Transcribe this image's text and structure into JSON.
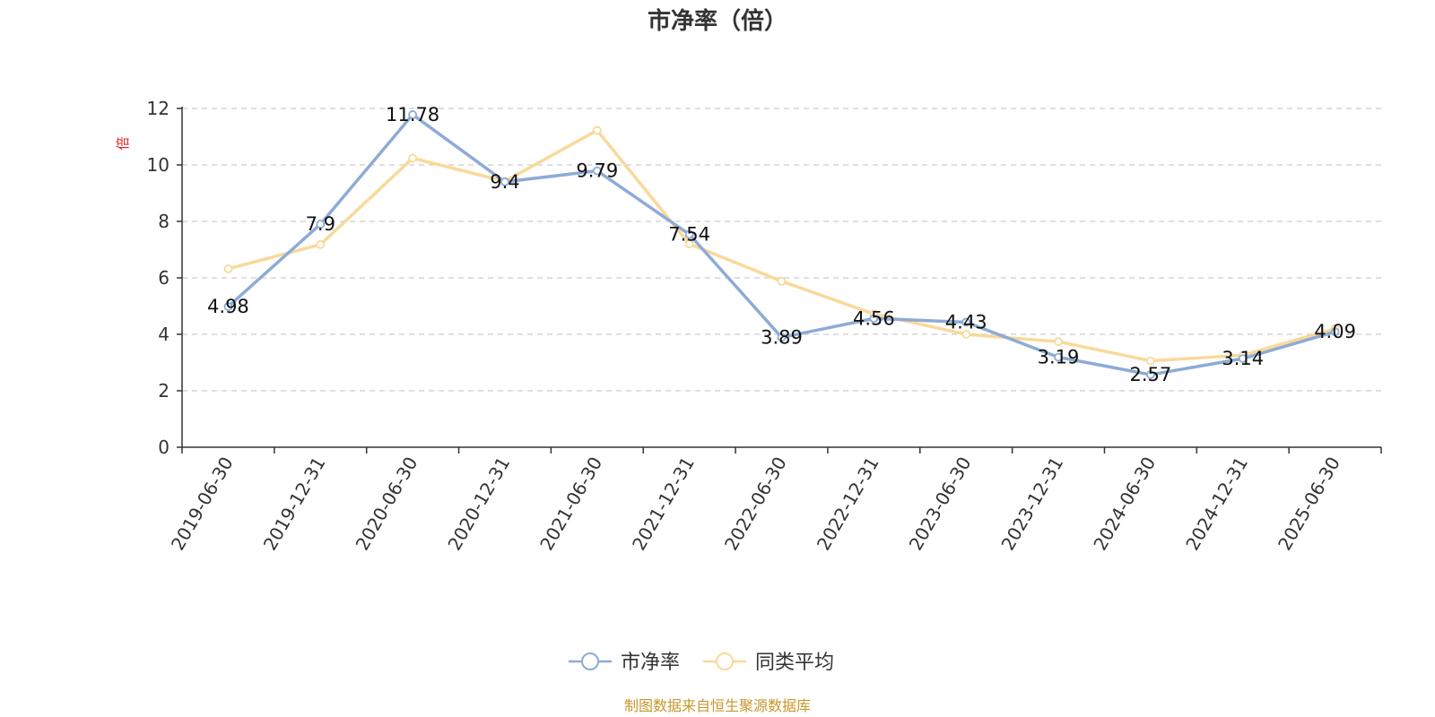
{
  "chart_data": {
    "type": "line",
    "title": "市净率（倍）",
    "ylabel": "倍",
    "xlabel": "",
    "ylim": [
      0,
      12
    ],
    "yticks": [
      0,
      2,
      4,
      6,
      8,
      10,
      12
    ],
    "grid": "horizontal dashed",
    "legend_position": "bottom-center",
    "categories": [
      "2019-06-30",
      "2019-12-31",
      "2020-06-30",
      "2020-12-31",
      "2021-06-30",
      "2021-12-31",
      "2022-06-30",
      "2022-12-31",
      "2023-06-30",
      "2023-12-31",
      "2024-06-30",
      "2024-12-31",
      "2025-06-30"
    ],
    "series": [
      {
        "name": "市净率",
        "color": "#8eabd6",
        "values": [
          4.98,
          7.9,
          11.78,
          9.4,
          9.79,
          7.54,
          3.89,
          4.56,
          4.43,
          3.19,
          2.57,
          3.14,
          4.09
        ],
        "data_labels": [
          "4.98",
          "7.9",
          "11.78",
          "9.4",
          "9.79",
          "7.54",
          "3.89",
          "4.56",
          "4.43",
          "3.19",
          "2.57",
          "3.14",
          "4.09"
        ]
      },
      {
        "name": "同类平均",
        "color": "#f9d99a",
        "values": [
          6.32,
          7.18,
          10.24,
          9.42,
          11.22,
          7.2,
          5.88,
          4.72,
          4.0,
          3.74,
          3.06,
          3.26,
          4.2
        ]
      }
    ],
    "source_note": "制图数据来自恒生聚源数据库"
  }
}
